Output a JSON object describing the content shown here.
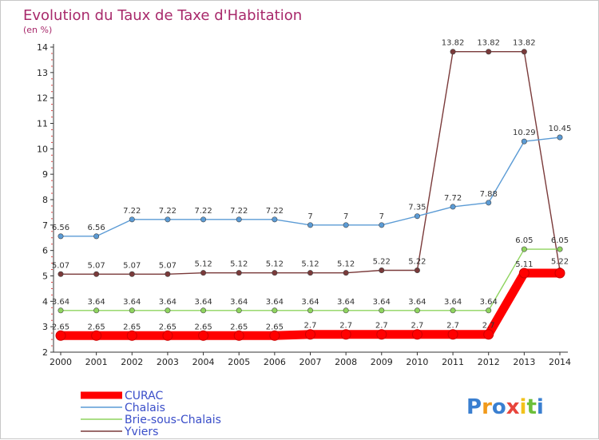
{
  "title": "Evolution du Taux de Taxe d'Habitation",
  "subtitle": "(en %)",
  "logo": "Proxiti",
  "chart_data": {
    "type": "line",
    "title": "Evolution du Taux de Taxe d'Habitation",
    "ylabel": "(en %)",
    "xlabel": "",
    "x": [
      "2000",
      "2001",
      "2002",
      "2003",
      "2004",
      "2005",
      "2006",
      "2007",
      "2008",
      "2009",
      "2010",
      "2011",
      "2012",
      "2013",
      "2014"
    ],
    "yticks": [
      "2",
      "3",
      "4",
      "5",
      "6",
      "7",
      "8",
      "9",
      "10",
      "11",
      "12",
      "13",
      "14"
    ],
    "ylim": [
      2,
      14
    ],
    "grid": false,
    "legend": "bottom-left",
    "series": [
      {
        "name": "CURAC",
        "color": "#ff0000",
        "values": [
          2.65,
          2.65,
          2.65,
          2.65,
          2.65,
          2.65,
          2.65,
          2.7,
          2.7,
          2.7,
          2.7,
          2.7,
          2.7,
          5.11,
          5.11
        ],
        "labels": [
          "2.65",
          "2.65",
          "2.65",
          "2.65",
          "2.65",
          "2.65",
          "2.65",
          "2.7",
          "2.7",
          "2.7",
          "2.7",
          "2.7",
          "2.7",
          "5.11",
          ""
        ]
      },
      {
        "name": "Chalais",
        "color": "#5b9bd5",
        "values": [
          6.56,
          6.56,
          7.22,
          7.22,
          7.22,
          7.22,
          7.22,
          7,
          7,
          7,
          7.35,
          7.72,
          7.88,
          10.29,
          10.45
        ],
        "labels": [
          "6.56",
          "6.56",
          "7.22",
          "7.22",
          "7.22",
          "7.22",
          "7.22",
          "7",
          "7",
          "7",
          "7.35",
          "7.72",
          "7.88",
          "10.29",
          "10.45"
        ]
      },
      {
        "name": "Brie-sous-Chalais",
        "color": "#8fd45f",
        "values": [
          3.64,
          3.64,
          3.64,
          3.64,
          3.64,
          3.64,
          3.64,
          3.64,
          3.64,
          3.64,
          3.64,
          3.64,
          3.64,
          6.05,
          6.05
        ],
        "labels": [
          "3.64",
          "3.64",
          "3.64",
          "3.64",
          "3.64",
          "3.64",
          "3.64",
          "3.64",
          "3.64",
          "3.64",
          "3.64",
          "3.64",
          "3.64",
          "6.05",
          "6.05"
        ]
      },
      {
        "name": "Yviers",
        "color": "#7a3a3a",
        "values": [
          5.07,
          5.07,
          5.07,
          5.07,
          5.12,
          5.12,
          5.12,
          5.12,
          5.12,
          5.22,
          5.22,
          13.82,
          13.82,
          13.82,
          5.22
        ],
        "labels": [
          "5.07",
          "5.07",
          "5.07",
          "5.07",
          "5.12",
          "5.12",
          "5.12",
          "5.12",
          "5.12",
          "5.22",
          "5.22",
          "13.82",
          "13.82",
          "13.82",
          "5.22"
        ]
      }
    ]
  }
}
